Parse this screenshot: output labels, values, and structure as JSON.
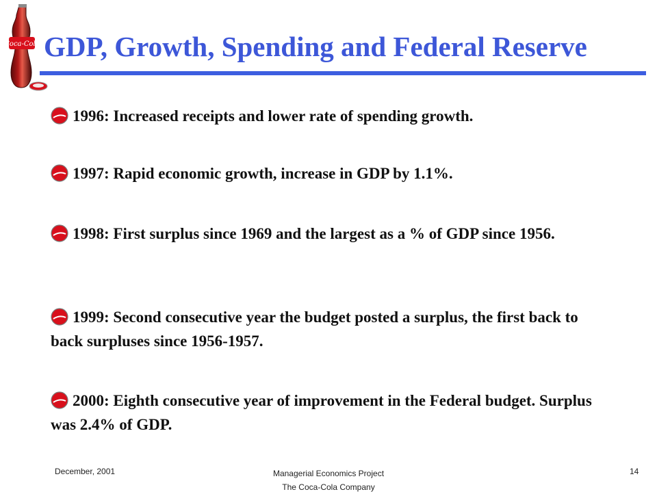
{
  "slide": {
    "title": "GDP, Growth, Spending and Federal Reserve",
    "bullets": [
      {
        "text": "1996: Increased receipts and lower rate of spending growth."
      },
      {
        "text": "1997: Rapid economic growth, increase in GDP by 1.1%."
      },
      {
        "text": "1998: First surplus since 1969 and the largest as a % of GDP since 1956."
      },
      {
        "text": "1999: Second consecutive year the budget posted a surplus, the first back to back surpluses since 1956-1957."
      },
      {
        "text": "2000: Eighth consecutive year of improvement in the Federal budget. Surplus was 2.4% of GDP."
      }
    ],
    "bullet_icon": "coca-cola-bottle-cap-icon",
    "logo": "coca-cola-bottle-logo",
    "colors": {
      "title": "#3d57d8",
      "rule": "#3d5ee0",
      "brand_red": "#d8101c"
    }
  },
  "footer": {
    "date": "December, 2001",
    "project": "Managerial Economics Project",
    "company": "The Coca-Cola Company",
    "page_number": "14"
  }
}
